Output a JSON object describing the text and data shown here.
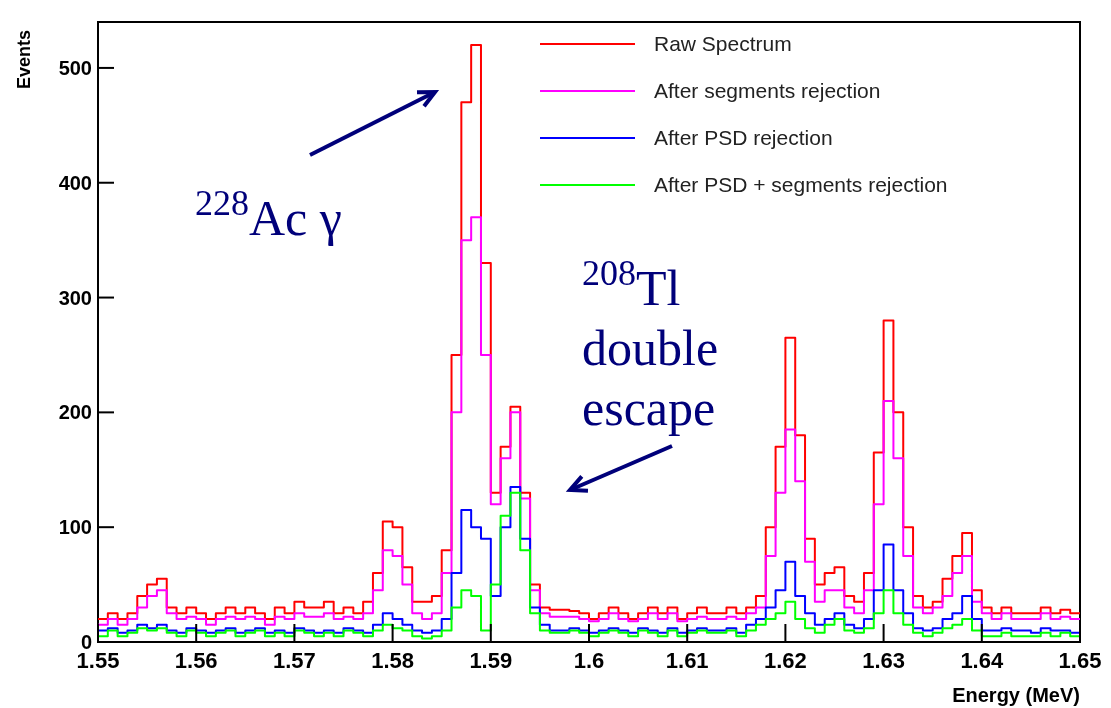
{
  "chart_data": {
    "type": "step",
    "xlabel": "Energy (MeV)",
    "ylabel": "Events",
    "xlim": [
      1.55,
      1.65
    ],
    "ylim": [
      0,
      540
    ],
    "xticks": [
      1.55,
      1.56,
      1.57,
      1.58,
      1.59,
      1.6,
      1.61,
      1.62,
      1.63,
      1.64,
      1.65
    ],
    "yticks": [
      0,
      100,
      200,
      300,
      400,
      500
    ],
    "x": [
      1.55,
      1.551,
      1.552,
      1.553,
      1.554,
      1.555,
      1.556,
      1.557,
      1.558,
      1.559,
      1.56,
      1.561,
      1.562,
      1.563,
      1.564,
      1.565,
      1.566,
      1.567,
      1.568,
      1.569,
      1.57,
      1.571,
      1.572,
      1.573,
      1.574,
      1.575,
      1.576,
      1.577,
      1.578,
      1.579,
      1.58,
      1.581,
      1.582,
      1.583,
      1.584,
      1.585,
      1.586,
      1.587,
      1.588,
      1.589,
      1.59,
      1.591,
      1.592,
      1.593,
      1.594,
      1.595,
      1.596,
      1.597,
      1.598,
      1.599,
      1.6,
      1.601,
      1.602,
      1.603,
      1.604,
      1.605,
      1.606,
      1.607,
      1.608,
      1.609,
      1.61,
      1.611,
      1.612,
      1.613,
      1.614,
      1.615,
      1.616,
      1.617,
      1.618,
      1.619,
      1.62,
      1.621,
      1.622,
      1.623,
      1.624,
      1.625,
      1.626,
      1.627,
      1.628,
      1.629,
      1.63,
      1.631,
      1.632,
      1.633,
      1.634,
      1.635,
      1.636,
      1.637,
      1.638,
      1.639,
      1.64,
      1.641,
      1.642,
      1.643,
      1.644,
      1.645,
      1.646,
      1.647,
      1.648,
      1.649,
      1.65
    ],
    "series": [
      {
        "name": "Raw Spectrum",
        "color": "#ff0000",
        "values": [
          20,
          25,
          20,
          25,
          40,
          50,
          55,
          30,
          25,
          30,
          25,
          20,
          25,
          30,
          25,
          30,
          25,
          20,
          30,
          25,
          35,
          30,
          30,
          35,
          25,
          30,
          25,
          35,
          60,
          105,
          100,
          65,
          35,
          35,
          40,
          80,
          250,
          470,
          520,
          330,
          130,
          170,
          205,
          130,
          50,
          30,
          28,
          28,
          27,
          25,
          20,
          25,
          30,
          25,
          20,
          25,
          30,
          25,
          30,
          20,
          25,
          30,
          25,
          25,
          30,
          25,
          30,
          40,
          100,
          170,
          265,
          180,
          90,
          50,
          60,
          65,
          40,
          35,
          60,
          165,
          280,
          200,
          100,
          40,
          30,
          35,
          55,
          75,
          95,
          45,
          30,
          25,
          30,
          25,
          25,
          25,
          30,
          25,
          28,
          25,
          25
        ]
      },
      {
        "name": "After segments rejection",
        "color": "#ff00ff",
        "values": [
          15,
          20,
          15,
          20,
          30,
          40,
          45,
          25,
          20,
          22,
          20,
          15,
          20,
          22,
          20,
          22,
          20,
          15,
          22,
          20,
          25,
          22,
          22,
          25,
          20,
          22,
          20,
          25,
          45,
          80,
          75,
          50,
          25,
          20,
          25,
          60,
          200,
          350,
          370,
          250,
          120,
          160,
          200,
          125,
          45,
          25,
          22,
          22,
          22,
          20,
          18,
          20,
          25,
          20,
          18,
          20,
          25,
          20,
          25,
          18,
          20,
          22,
          20,
          20,
          22,
          20,
          25,
          30,
          75,
          130,
          185,
          140,
          70,
          35,
          45,
          45,
          30,
          25,
          45,
          120,
          210,
          160,
          75,
          30,
          25,
          30,
          40,
          60,
          75,
          35,
          25,
          20,
          25,
          20,
          20,
          20,
          25,
          20,
          22,
          20,
          20
        ]
      },
      {
        "name": "After PSD rejection",
        "color": "#0000ff",
        "values": [
          10,
          12,
          8,
          10,
          15,
          12,
          15,
          10,
          8,
          12,
          10,
          8,
          10,
          12,
          8,
          10,
          12,
          8,
          10,
          8,
          12,
          10,
          8,
          10,
          8,
          12,
          10,
          8,
          15,
          25,
          20,
          15,
          10,
          8,
          10,
          20,
          60,
          115,
          100,
          90,
          40,
          100,
          135,
          90,
          30,
          15,
          10,
          10,
          12,
          10,
          8,
          10,
          12,
          10,
          8,
          12,
          10,
          8,
          12,
          8,
          10,
          12,
          10,
          10,
          12,
          8,
          15,
          20,
          30,
          45,
          70,
          40,
          25,
          15,
          20,
          25,
          15,
          12,
          20,
          45,
          85,
          45,
          25,
          12,
          10,
          12,
          20,
          25,
          40,
          20,
          10,
          10,
          12,
          10,
          10,
          8,
          12,
          10,
          10,
          8,
          8
        ]
      },
      {
        "name": "After PSD + segments rejection",
        "color": "#00ff00",
        "values": [
          5,
          10,
          5,
          8,
          12,
          10,
          12,
          8,
          5,
          10,
          8,
          5,
          8,
          10,
          5,
          8,
          10,
          5,
          8,
          5,
          10,
          8,
          5,
          8,
          5,
          10,
          8,
          5,
          10,
          15,
          12,
          10,
          5,
          3,
          5,
          10,
          30,
          45,
          40,
          10,
          50,
          110,
          130,
          80,
          25,
          10,
          8,
          8,
          10,
          8,
          5,
          8,
          10,
          8,
          5,
          10,
          8,
          5,
          10,
          5,
          8,
          10,
          8,
          8,
          10,
          5,
          10,
          15,
          20,
          25,
          35,
          20,
          12,
          8,
          15,
          20,
          10,
          8,
          12,
          25,
          45,
          25,
          15,
          8,
          5,
          8,
          12,
          15,
          20,
          10,
          5,
          5,
          8,
          5,
          5,
          5,
          8,
          5,
          8,
          5,
          5
        ]
      }
    ],
    "legend": "top right",
    "annotations": [
      "$^{228}$Ac γ",
      "$^{208}$Tl\ndouble\nescape"
    ]
  }
}
